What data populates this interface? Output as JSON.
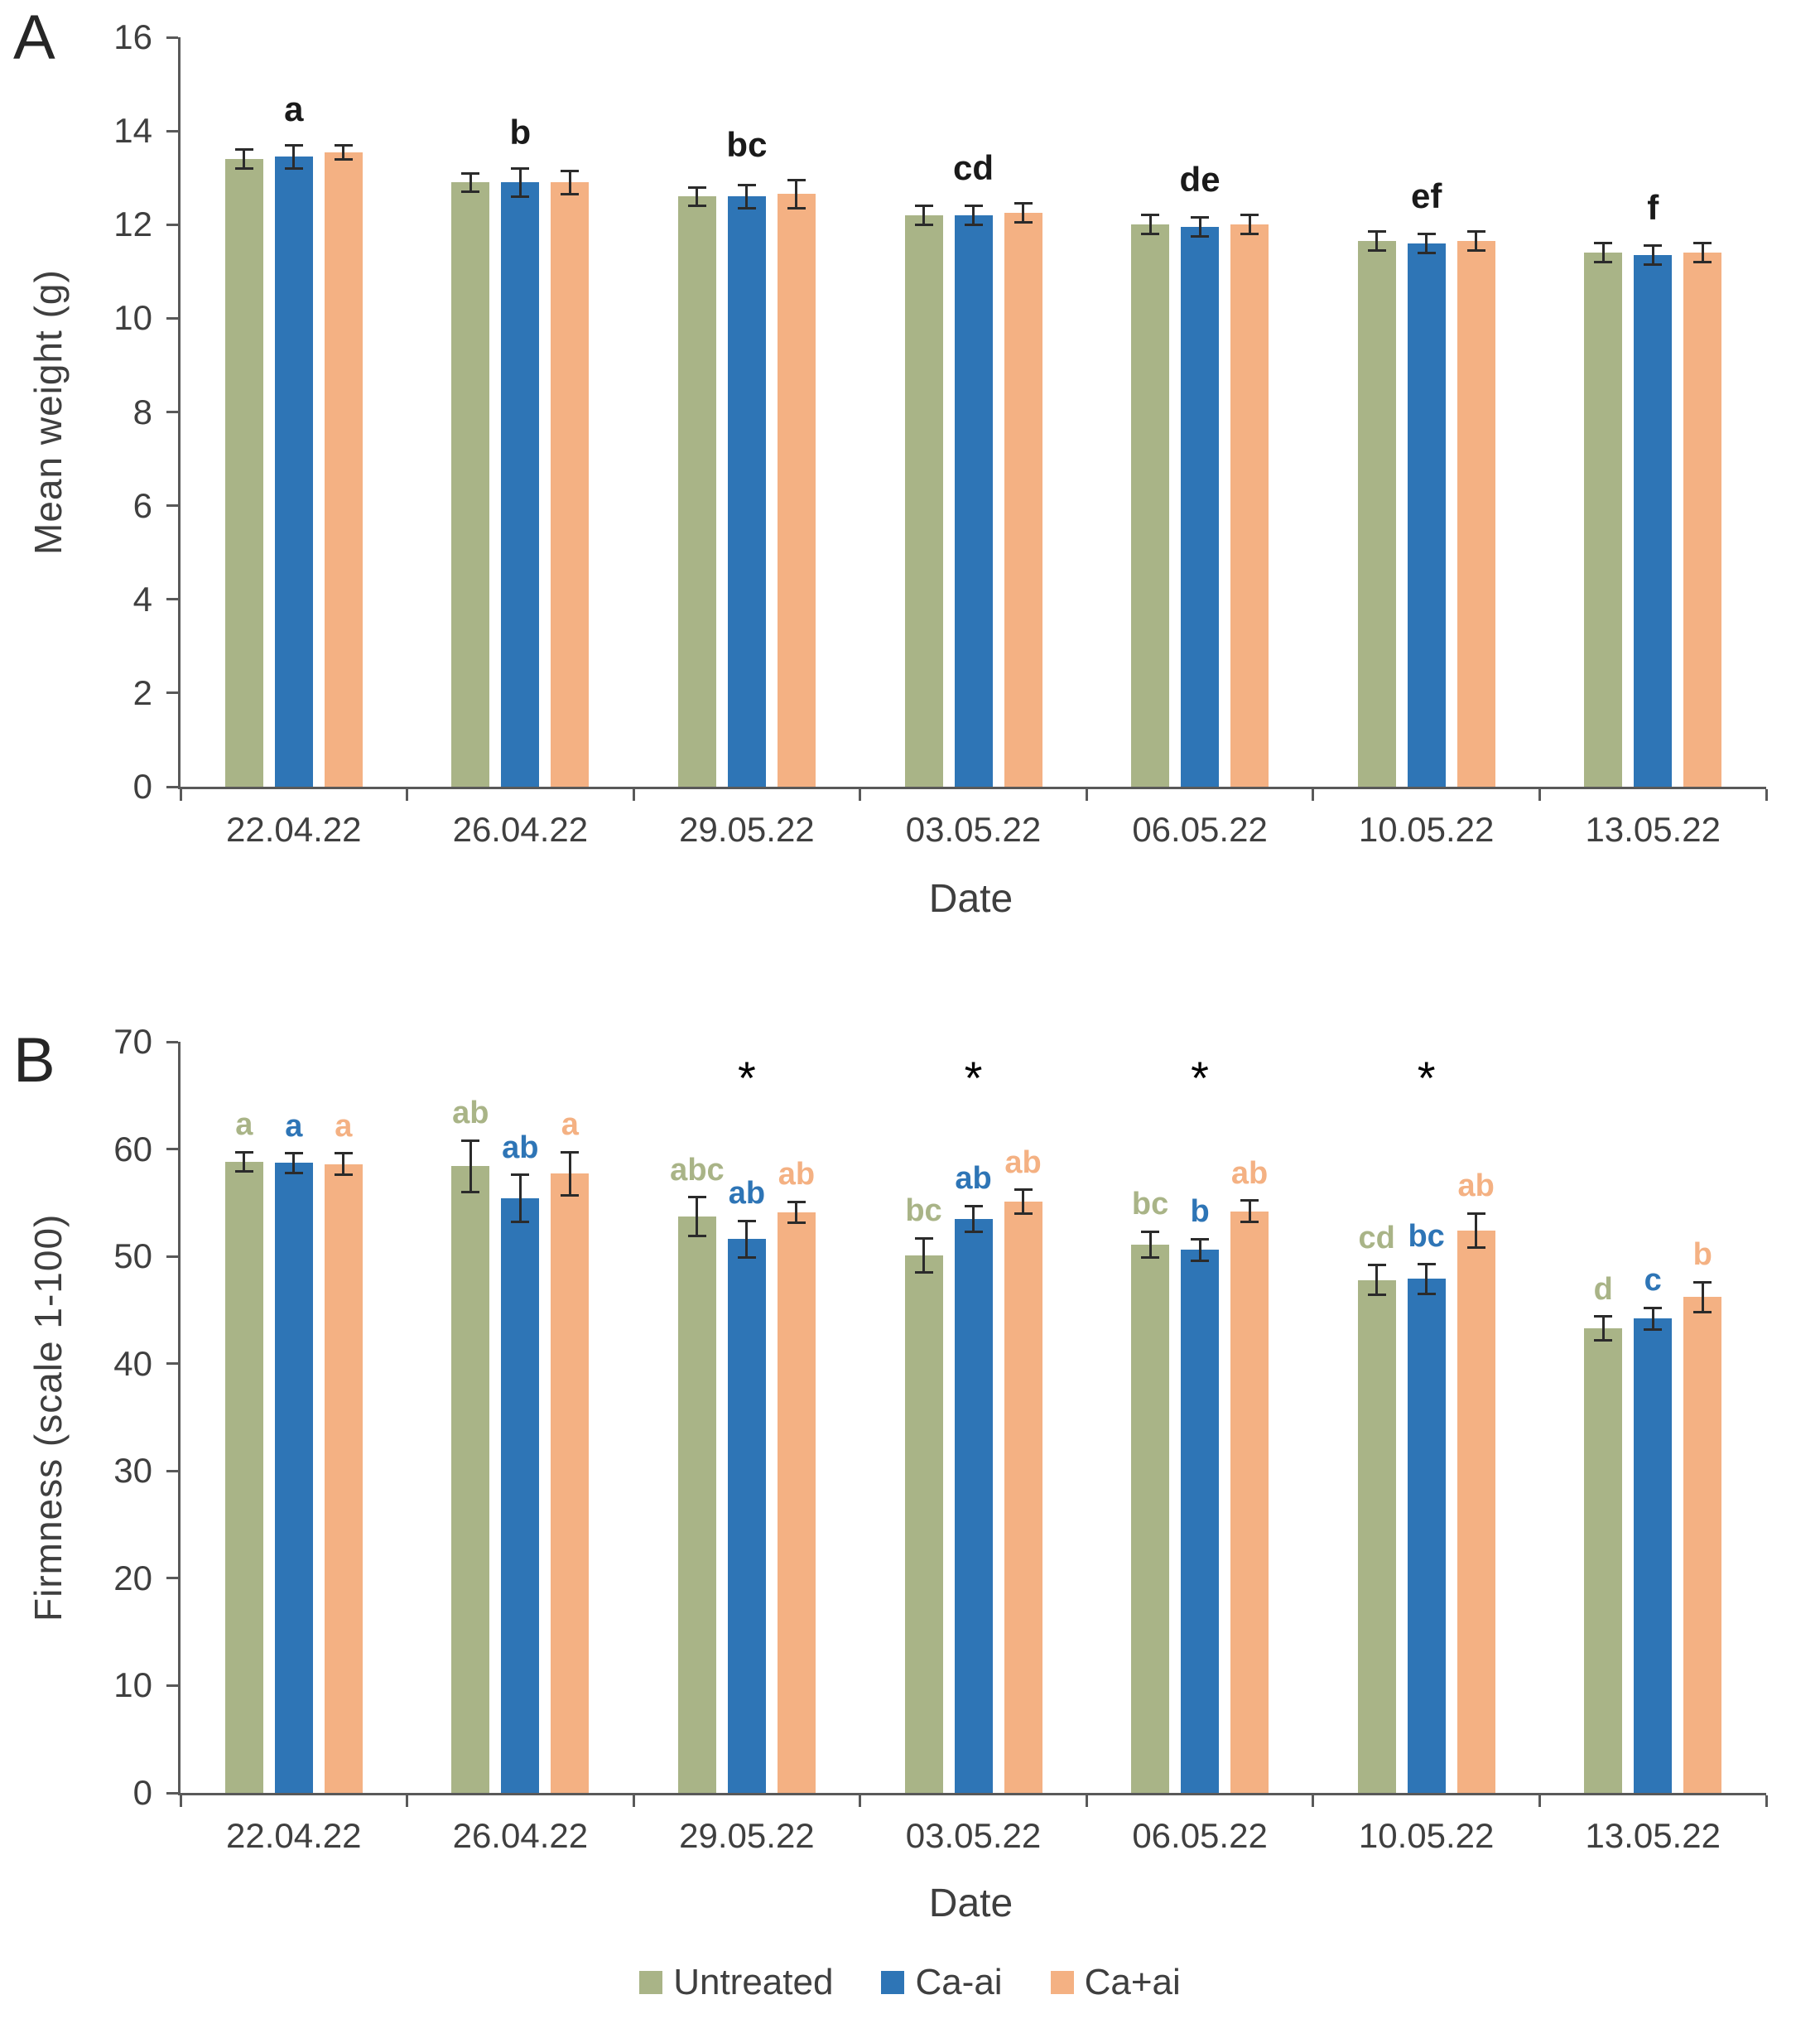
{
  "figure": {
    "panel_a_label": "A",
    "panel_b_label": "B"
  },
  "colors": {
    "untreated": "#a9b487",
    "ca_minus_ai": "#2e75b6",
    "ca_plus_ai": "#f4b183",
    "error_bar": "#2b2b2b",
    "axis": "#595959",
    "text": "#3f3f3f"
  },
  "legend": {
    "items": [
      {
        "label": "Untreated",
        "color": "#a9b487"
      },
      {
        "label": "Ca-ai",
        "color": "#2e75b6"
      },
      {
        "label": "Ca+ai",
        "color": "#f4b183"
      }
    ]
  },
  "chart_data": [
    {
      "type": "bar",
      "panel": "A",
      "title": "",
      "xlabel": "Date",
      "ylabel": "Mean weight (g)",
      "ylim": [
        0,
        16
      ],
      "ytick_step": 2,
      "grid": false,
      "legend_position": "bottom-shared",
      "categories": [
        "22.04.22",
        "26.04.22",
        "29.05.22",
        "03.05.22",
        "06.05.22",
        "10.05.22",
        "13.05.22"
      ],
      "series": [
        {
          "name": "Untreated",
          "color": "#a9b487",
          "values": [
            13.4,
            12.9,
            12.6,
            12.2,
            12.0,
            11.65,
            11.4
          ],
          "errors": [
            0.2,
            0.2,
            0.2,
            0.2,
            0.2,
            0.2,
            0.2
          ]
        },
        {
          "name": "Ca-ai",
          "color": "#2e75b6",
          "values": [
            13.45,
            12.9,
            12.6,
            12.2,
            11.95,
            11.6,
            11.35
          ],
          "errors": [
            0.25,
            0.3,
            0.25,
            0.2,
            0.2,
            0.2,
            0.2
          ]
        },
        {
          "name": "Ca+ai",
          "color": "#f4b183",
          "values": [
            13.55,
            12.9,
            12.65,
            12.25,
            12.0,
            11.65,
            11.4
          ],
          "errors": [
            0.15,
            0.25,
            0.3,
            0.2,
            0.2,
            0.2,
            0.2
          ]
        }
      ],
      "group_letters": [
        "a",
        "b",
        "bc",
        "cd",
        "de",
        "ef",
        "f"
      ]
    },
    {
      "type": "bar",
      "panel": "B",
      "title": "",
      "xlabel": "Date",
      "ylabel": "Firmness (scale 1-100)",
      "ylim": [
        0,
        70
      ],
      "ytick_step": 10,
      "grid": false,
      "legend_position": "bottom-shared",
      "categories": [
        "22.04.22",
        "26.04.22",
        "29.05.22",
        "03.05.22",
        "06.05.22",
        "10.05.22",
        "13.05.22"
      ],
      "series": [
        {
          "name": "Untreated",
          "color": "#a9b487",
          "values": [
            58.8,
            58.4,
            53.7,
            50.1,
            51.1,
            47.8,
            43.3
          ],
          "errors": [
            0.9,
            2.4,
            1.8,
            1.6,
            1.2,
            1.4,
            1.1
          ],
          "letters": [
            "a",
            "ab",
            "abc",
            "bc",
            "bc",
            "cd",
            "d"
          ]
        },
        {
          "name": "Ca-ai",
          "color": "#2e75b6",
          "values": [
            58.7,
            55.4,
            51.6,
            53.5,
            50.6,
            47.9,
            44.2
          ],
          "errors": [
            0.9,
            2.2,
            1.7,
            1.2,
            1.0,
            1.4,
            1.0
          ],
          "letters": [
            "a",
            "ab",
            "ab",
            "ab",
            "b",
            "bc",
            "c"
          ]
        },
        {
          "name": "Ca+ai",
          "color": "#f4b183",
          "values": [
            58.6,
            57.7,
            54.1,
            55.1,
            54.2,
            52.4,
            46.2
          ],
          "errors": [
            1.0,
            2.0,
            1.0,
            1.1,
            1.0,
            1.6,
            1.4
          ],
          "letters": [
            "a",
            "a",
            "ab",
            "ab",
            "ab",
            "ab",
            "b"
          ]
        }
      ],
      "asterisk_symbol": "*",
      "asterisk_groups": [
        2,
        3,
        4,
        5
      ]
    }
  ]
}
